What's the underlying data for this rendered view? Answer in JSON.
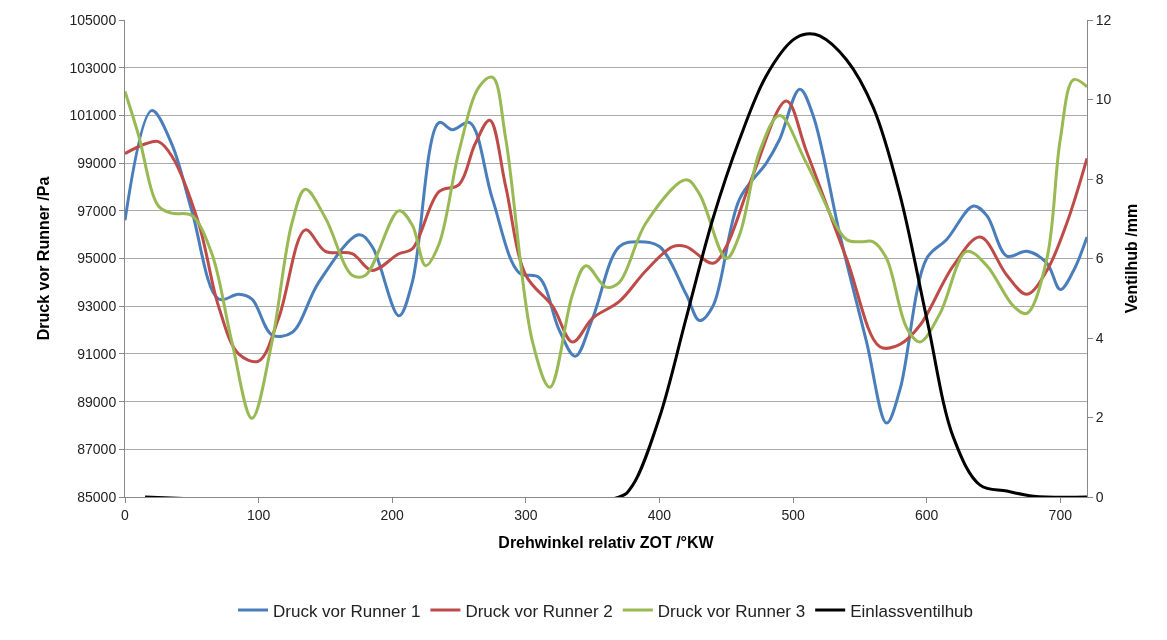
{
  "chart_data": {
    "type": "line",
    "xlabel": "Drehwinkel relativ ZOT /°KW",
    "ylabel": "Druck vor Runner /Pa",
    "y2label": "Ventilhub /mm",
    "xlim": [
      0,
      720
    ],
    "xticks": [
      0,
      100,
      200,
      300,
      400,
      500,
      600,
      700
    ],
    "ylim": [
      85000,
      105000
    ],
    "yticks": [
      85000,
      87000,
      89000,
      91000,
      93000,
      95000,
      97000,
      99000,
      101000,
      103000,
      105000
    ],
    "y2lim": [
      0,
      12
    ],
    "y2ticks": [
      0,
      2,
      4,
      6,
      8,
      10,
      12
    ],
    "grid": "y",
    "legend": "bottom",
    "marker": "none",
    "line_style": "solid",
    "series": [
      {
        "name": "Druck vor Runner 1",
        "color": "#4a7ebb",
        "x": [
          0,
          20,
          35,
          50,
          70,
          85,
          95,
          110,
          125,
          145,
          175,
          185,
          205,
          215,
          235,
          245,
          258,
          275,
          295,
          310,
          325,
          337,
          350,
          370,
          385,
          400,
          420,
          430,
          440,
          460,
          480,
          490,
          505,
          515,
          535,
          555,
          570,
          580,
          600,
          615,
          635,
          645,
          660,
          675,
          690,
          700,
          710,
          720
        ],
        "values": [
          96600,
          101200,
          99800,
          97000,
          93300,
          93500,
          93300,
          91800,
          91900,
          94000,
          96000,
          95500,
          92600,
          94000,
          100700,
          100400,
          100700,
          97500,
          94400,
          94200,
          92000,
          90900,
          92500,
          95500,
          95700,
          95500,
          93500,
          92400,
          93000,
          97500,
          99000,
          100000,
          102100,
          101000,
          96000,
          91500,
          88100,
          89500,
          95000,
          95800,
          97200,
          96800,
          95100,
          95300,
          94800,
          93700,
          94500,
          95900
        ]
      },
      {
        "name": "Druck vor Runner 2",
        "color": "#be4b48",
        "x": [
          0,
          15,
          25,
          35,
          55,
          70,
          85,
          100,
          115,
          135,
          150,
          170,
          185,
          205,
          215,
          235,
          250,
          262,
          273,
          285,
          300,
          320,
          335,
          350,
          370,
          390,
          410,
          420,
          440,
          450,
          470,
          495,
          510,
          540,
          565,
          580,
          595,
          620,
          640,
          660,
          675,
          690,
          705,
          720
        ],
        "values": [
          99400,
          99800,
          99900,
          99300,
          96500,
          93000,
          91000,
          90700,
          92500,
          96200,
          95300,
          95200,
          94500,
          95200,
          95400,
          97800,
          98100,
          99800,
          100800,
          98000,
          94300,
          93000,
          91500,
          92500,
          93200,
          94500,
          95500,
          95500,
          94800,
          95500,
          98500,
          101600,
          99500,
          95000,
          91300,
          91400,
          92200,
          94700,
          95900,
          94300,
          93500,
          94500,
          96500,
          99200
        ]
      },
      {
        "name": "Druck vor Runner 3",
        "color": "#98b954",
        "x": [
          0,
          10,
          25,
          35,
          50,
          65,
          80,
          95,
          110,
          125,
          135,
          150,
          170,
          180,
          205,
          215,
          225,
          235,
          250,
          265,
          275,
          285,
          305,
          318,
          335,
          345,
          360,
          370,
          390,
          420,
          430,
          450,
          460,
          475,
          490,
          510,
          540,
          550,
          560,
          570,
          585,
          595,
          610,
          630,
          645,
          665,
          675,
          690,
          700,
          710,
          720
        ],
        "values": [
          102000,
          100200,
          97200,
          96900,
          96800,
          95200,
          91500,
          88300,
          91500,
          96500,
          97900,
          96700,
          94300,
          94300,
          97000,
          96400,
          94700,
          95600,
          99500,
          102200,
          102600,
          100000,
          91500,
          89600,
          93500,
          94700,
          93800,
          94000,
          96500,
          98300,
          97700,
          95000,
          96000,
          99500,
          101000,
          99000,
          95800,
          95700,
          95700,
          95000,
          92100,
          91500,
          92700,
          95300,
          94700,
          93000,
          92700,
          95000,
          100000,
          102500,
          102200
        ]
      },
      {
        "name": "Einlassventilhub",
        "color": "#000000",
        "axis": "y2",
        "x": [
          15,
          370,
          380,
          400,
          420,
          440,
          460,
          480,
          500,
          510,
          520,
          540,
          560,
          580,
          600,
          620,
          640,
          660,
          680,
          720
        ],
        "values": [
          0,
          0,
          0.3,
          2,
          4.5,
          7,
          9,
          10.6,
          11.5,
          11.65,
          11.6,
          11,
          9.8,
          7.6,
          4.5,
          1.5,
          0.3,
          0.15,
          0.02,
          0
        ]
      }
    ]
  }
}
